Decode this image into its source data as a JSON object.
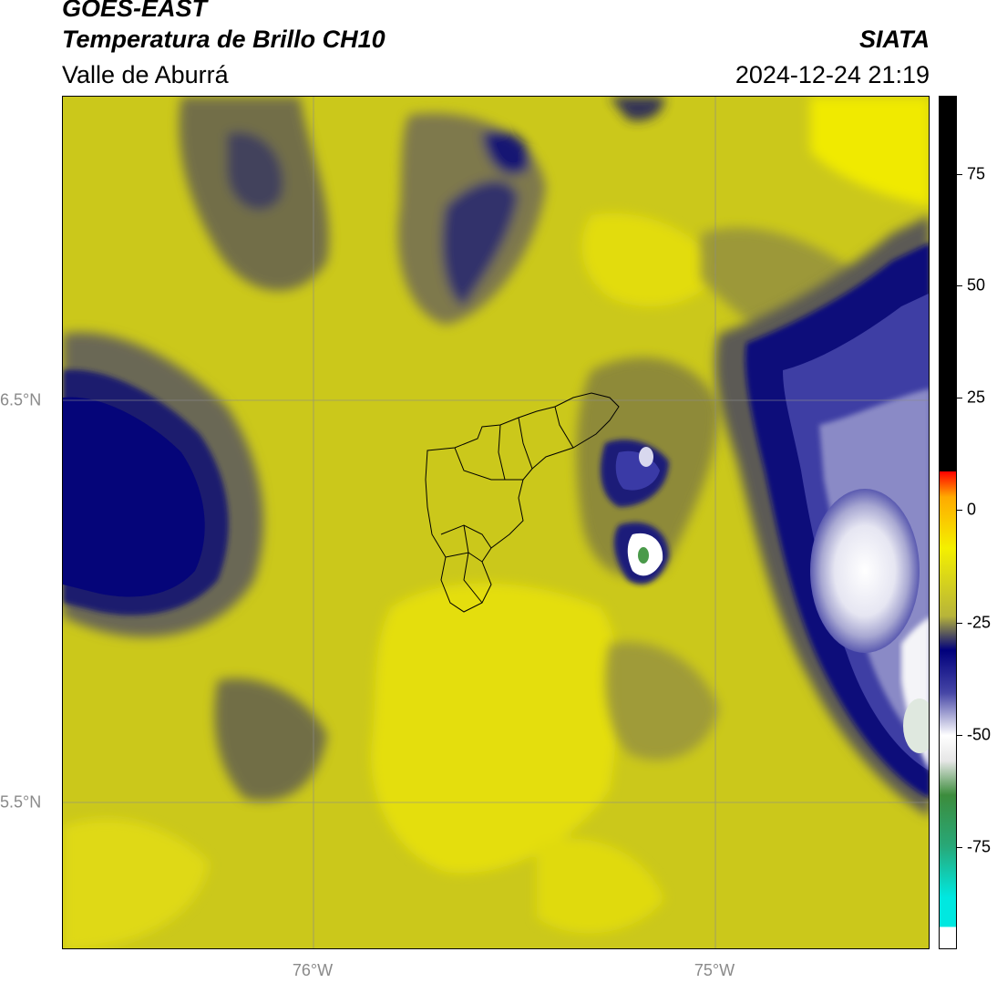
{
  "header": {
    "satellite": "GOES-EAST",
    "product": "Temperatura de Brillo CH10",
    "region": "Valle de Aburrá",
    "organization": "SIATA",
    "datetime": "2024-12-24 21:19"
  },
  "map": {
    "gridlines": true,
    "latitude_labels": [
      "6.5°N",
      "5.5°N"
    ],
    "longitude_labels": [
      "76°W",
      "75°W"
    ],
    "colors": {
      "warm_yellow": "#e6e00a",
      "mid_olive": "#c9c61a",
      "dark_olive": "#8f8a3a",
      "cold_navy": "#0a0a78",
      "blue": "#3a3aa8",
      "pale": "#d8d8ec",
      "white": "#ffffff",
      "green": "#4a9a4a"
    },
    "boundary": "Valle de Aburrá municipalities"
  },
  "colorbar": {
    "ticks": [
      "75",
      "50",
      "25",
      "0",
      "-25",
      "-50",
      "-75"
    ],
    "colors": [
      "#00e8e0",
      "#28a878",
      "#3c8c3c",
      "#e6e6e6",
      "#ffffff",
      "#4646a6",
      "#00007c",
      "#b7b43a",
      "#f4f000",
      "#ffaa00",
      "#ff0000",
      "#000000"
    ]
  }
}
